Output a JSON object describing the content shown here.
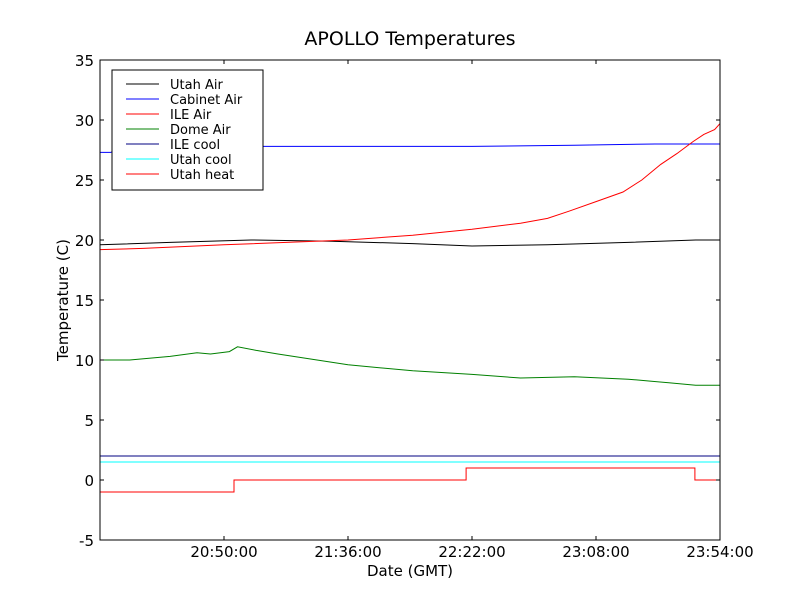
{
  "chart_data": {
    "type": "line",
    "title": "APOLLO Temperatures",
    "xlabel": "Date (GMT)",
    "ylabel": "Temperature (C)",
    "xlim_minutes": [
      1204,
      1434
    ],
    "ylim": [
      -5,
      35
    ],
    "yticks": [
      -5,
      0,
      5,
      10,
      15,
      20,
      25,
      30,
      35
    ],
    "xticks": [
      {
        "value": 1250,
        "label": "20:50:00"
      },
      {
        "value": 1296,
        "label": "21:36:00"
      },
      {
        "value": 1342,
        "label": "22:22:00"
      },
      {
        "value": 1388,
        "label": "23:08:00"
      },
      {
        "value": 1434,
        "label": "23:54:00"
      }
    ],
    "legend_position": "top-left",
    "grid": false,
    "series": [
      {
        "name": "Utah Air",
        "color": "#000000",
        "x": [
          1204,
          1230,
          1260,
          1290,
          1320,
          1342,
          1370,
          1400,
          1425,
          1434
        ],
        "y": [
          19.6,
          19.8,
          20.0,
          19.9,
          19.7,
          19.5,
          19.6,
          19.8,
          20.0,
          20.0
        ]
      },
      {
        "name": "Cabinet Air",
        "color": "#0000ff",
        "x": [
          1204,
          1208,
          1212,
          1250,
          1300,
          1342,
          1380,
          1410,
          1434
        ],
        "y": [
          27.3,
          27.3,
          27.8,
          27.8,
          27.8,
          27.8,
          27.9,
          28.0,
          28.0
        ]
      },
      {
        "name": "ILE Air",
        "color": "#ff0000",
        "x": [
          1204,
          1220,
          1250,
          1296,
          1320,
          1342,
          1360,
          1370,
          1378,
          1388,
          1398,
          1405,
          1412,
          1418,
          1424,
          1428,
          1432,
          1434
        ],
        "y": [
          19.2,
          19.3,
          19.6,
          20.0,
          20.4,
          20.9,
          21.4,
          21.8,
          22.4,
          23.2,
          24.0,
          25.0,
          26.3,
          27.2,
          28.2,
          28.8,
          29.2,
          29.7
        ]
      },
      {
        "name": "Dome Air",
        "color": "#008000",
        "x": [
          1204,
          1215,
          1230,
          1240,
          1245,
          1252,
          1255,
          1262,
          1270,
          1296,
          1320,
          1342,
          1360,
          1380,
          1400,
          1415,
          1425,
          1434
        ],
        "y": [
          10.0,
          10.0,
          10.3,
          10.6,
          10.5,
          10.7,
          11.1,
          10.8,
          10.5,
          9.6,
          9.1,
          8.8,
          8.5,
          8.6,
          8.4,
          8.1,
          7.9,
          7.9
        ]
      },
      {
        "name": "ILE cool",
        "color": "#000080",
        "x": [
          1204,
          1434
        ],
        "y": [
          2.0,
          2.0
        ]
      },
      {
        "name": "Utah cool",
        "color": "#00ffff",
        "x": [
          1204,
          1434
        ],
        "y": [
          1.5,
          1.5
        ]
      },
      {
        "name": "Utah heat",
        "color": "#ff0000",
        "x": [
          1204,
          1253.7,
          1253.7,
          1339.8,
          1339.8,
          1424.7,
          1424.7,
          1434
        ],
        "y": [
          -1,
          -1,
          0,
          0,
          1,
          1,
          0,
          0
        ]
      }
    ]
  }
}
